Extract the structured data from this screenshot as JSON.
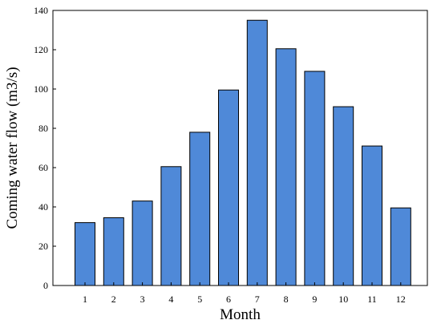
{
  "chart_data": {
    "type": "bar",
    "title": "",
    "xlabel": "Month",
    "ylabel": "Coming water flow (m3/s)",
    "categories": [
      "1",
      "2",
      "3",
      "4",
      "5",
      "6",
      "7",
      "8",
      "9",
      "10",
      "11",
      "12"
    ],
    "values": [
      32,
      34.5,
      43,
      60.5,
      78,
      99.5,
      135,
      120.5,
      109,
      91,
      71,
      39.5
    ],
    "ylim": [
      0,
      140
    ],
    "yticks": [
      0,
      20,
      40,
      60,
      80,
      100,
      120,
      140
    ],
    "grid": false,
    "legend": "none",
    "colors": {
      "bar": "#4f89d8",
      "bar_edge": "#000000",
      "axis": "#000000"
    }
  }
}
